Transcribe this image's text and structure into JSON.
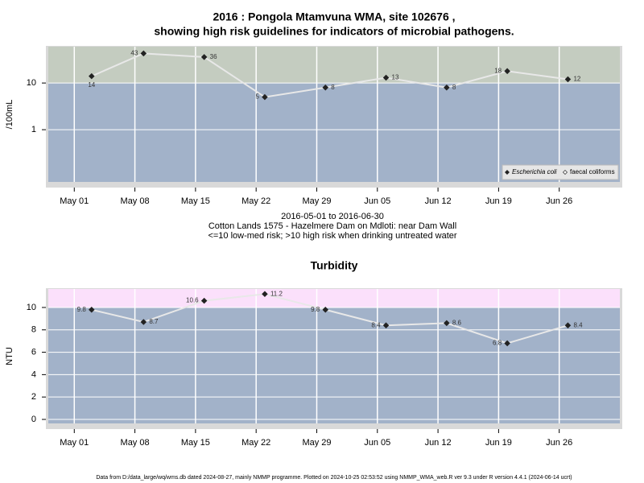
{
  "title_lines": [
    "2016 : Pongola Mtamvuna WMA, site 102676 ,",
    "showing high risk guidelines for indicators of microbial pathogens."
  ],
  "notes": [
    "2016-05-01 to 2016-06-30",
    "Cotton Lands 1575 - Hazelmere Dam on Mdloti: near Dam Wall",
    "<=10 low-med risk; >10 high risk when drinking untreated water"
  ],
  "footer": "Data from D:/data_large/wq/wms.db dated 2024-08-27, mainly NMMP programme. Plotted on 2024-10-25 02:53:52 using NMMP_WMA_web.R ver 9.3 under R version 4.4.1 (2024-06-14 ucrt)",
  "chart_data": [
    {
      "type": "line",
      "y_label": "/100mL",
      "ylog": true,
      "ylim": [
        0.076,
        60
      ],
      "yticks": [
        1,
        10
      ],
      "x": [
        "2016-05-03",
        "2016-05-09",
        "2016-05-16",
        "2016-05-23",
        "2016-05-30",
        "2016-06-06",
        "2016-06-13",
        "2016-06-20",
        "2016-06-27"
      ],
      "xlim": [
        "2016-04-28",
        "2016-07-03"
      ],
      "xticks": [
        {
          "value": "2016-05-01",
          "label": "May 01"
        },
        {
          "value": "2016-05-08",
          "label": "May 08"
        },
        {
          "value": "2016-05-15",
          "label": "May 15"
        },
        {
          "value": "2016-05-22",
          "label": "May 22"
        },
        {
          "value": "2016-05-29",
          "label": "May 29"
        },
        {
          "value": "2016-06-05",
          "label": "Jun 05"
        },
        {
          "value": "2016-06-12",
          "label": "Jun 12"
        },
        {
          "value": "2016-06-19",
          "label": "Jun 19"
        },
        {
          "value": "2016-06-26",
          "label": "Jun 26"
        }
      ],
      "threshold": 10,
      "above_color": "#c4ccc0",
      "below_color": "#a2b2c9",
      "grid": true,
      "legend": "bottom-right",
      "series": [
        {
          "name": "Escherichia coli",
          "color": "#e8e8e8",
          "marker": "filled-diamond",
          "values": [
            14,
            43,
            36,
            5,
            8,
            13,
            8,
            18,
            12
          ]
        },
        {
          "name": "faecal coliforms",
          "color": "#e8e8e8",
          "marker": "open-diamond",
          "values": [
            null,
            null,
            null,
            null,
            null,
            null,
            null,
            null,
            null
          ]
        }
      ]
    },
    {
      "type": "line",
      "title": "Turbidity",
      "y_label": "NTU",
      "ylog": false,
      "ylim": [
        -0.36,
        11.65
      ],
      "yticks": [
        0,
        2,
        4,
        6,
        8,
        10
      ],
      "x": [
        "2016-05-03",
        "2016-05-09",
        "2016-05-16",
        "2016-05-23",
        "2016-05-30",
        "2016-06-06",
        "2016-06-13",
        "2016-06-20",
        "2016-06-27"
      ],
      "xlim": [
        "2016-04-28",
        "2016-07-03"
      ],
      "xticks": [
        {
          "value": "2016-05-01",
          "label": "May 01"
        },
        {
          "value": "2016-05-08",
          "label": "May 08"
        },
        {
          "value": "2016-05-15",
          "label": "May 15"
        },
        {
          "value": "2016-05-22",
          "label": "May 22"
        },
        {
          "value": "2016-05-29",
          "label": "May 29"
        },
        {
          "value": "2016-06-05",
          "label": "Jun 05"
        },
        {
          "value": "2016-06-12",
          "label": "Jun 12"
        },
        {
          "value": "2016-06-19",
          "label": "Jun 19"
        },
        {
          "value": "2016-06-26",
          "label": "Jun 26"
        }
      ],
      "threshold": 10,
      "above_color": "#fbe0fb",
      "below_color": "#a2b2c9",
      "grid": true,
      "series": [
        {
          "name": "Turbidity",
          "color": "#e8e8e8",
          "marker": "filled-diamond",
          "values": [
            9.8,
            8.7,
            10.6,
            11.2,
            9.8,
            8.4,
            8.6,
            6.8,
            8.4
          ]
        }
      ]
    }
  ]
}
